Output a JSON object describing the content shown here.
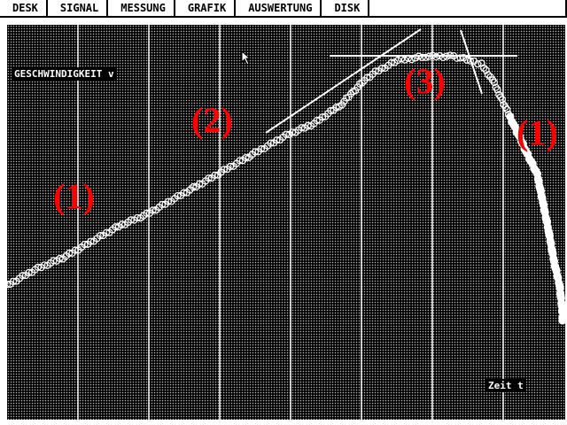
{
  "menu": [
    "DESK",
    "SIGNAL",
    "MESSUNG",
    "GRAFIK",
    "AUSWERTUNG",
    "DISK"
  ],
  "plot": {
    "y_label": "GESCHWINDIGKEIT v",
    "x_label": "Zeit t",
    "phase_labels": [
      "(1)",
      "(2)",
      "(3)",
      "(1)"
    ],
    "colors": {
      "background": "#000000",
      "curve": "#ffffff",
      "grid": "#ffffff",
      "labels": "#ff0000"
    }
  },
  "chart_data": {
    "type": "scatter",
    "xlabel": "Zeit t",
    "ylabel": "GESCHWINDIGKEIT v",
    "grid": "vertical",
    "x": [
      0,
      5,
      10,
      15,
      20,
      25,
      30,
      35,
      40,
      45,
      50,
      55,
      60,
      62,
      64,
      66,
      70,
      75,
      80,
      83,
      85,
      87,
      89,
      91,
      93,
      95,
      96,
      97,
      98,
      99,
      99.5,
      99.5
    ],
    "y": [
      34,
      38,
      41,
      45,
      49,
      52,
      56,
      60,
      64,
      68,
      72,
      75,
      80,
      83,
      86,
      88,
      91,
      92,
      92,
      91,
      90,
      86,
      80,
      74,
      68,
      62,
      55,
      48,
      40,
      34,
      27,
      24
    ]
  }
}
